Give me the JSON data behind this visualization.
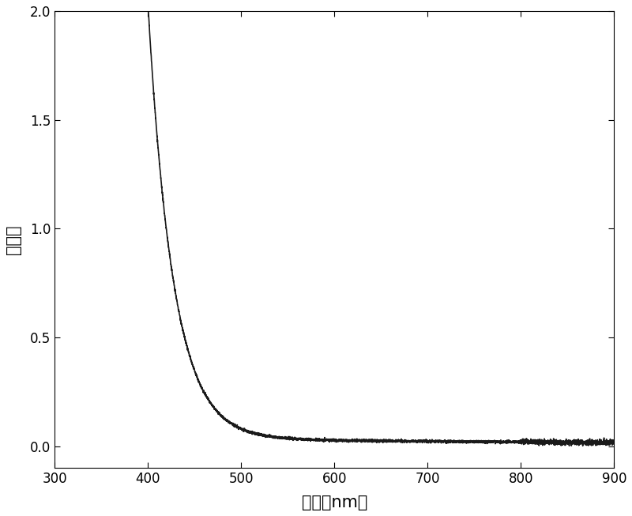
{
  "xlim": [
    300,
    900
  ],
  "ylim": [
    -0.1,
    2.0
  ],
  "xticks": [
    300,
    400,
    500,
    600,
    700,
    800,
    900
  ],
  "yticks": [
    0.0,
    0.5,
    1.0,
    1.5,
    2.0
  ],
  "xlabel": "波长（nm）",
  "ylabel": "吸光度",
  "line_color": "#1a1a1a",
  "line_width": 1.2,
  "background_color": "#ffffff",
  "figsize": [
    8.0,
    6.53
  ],
  "dpi": 100
}
